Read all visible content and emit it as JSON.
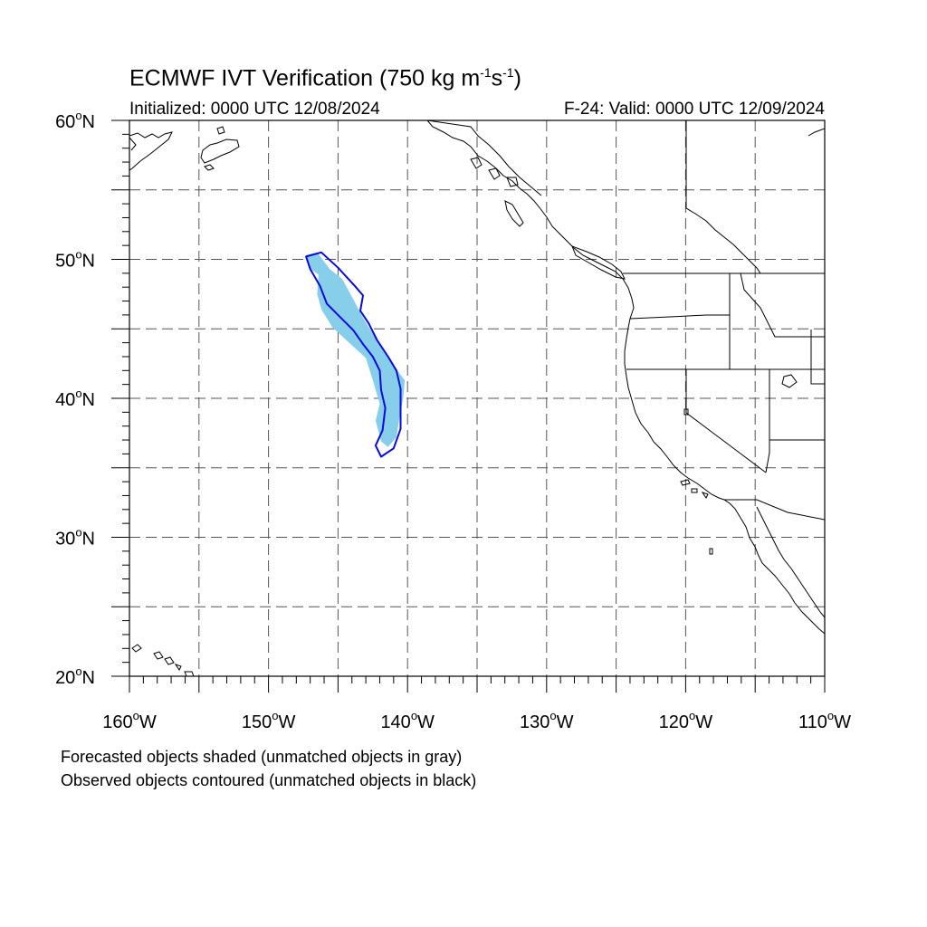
{
  "title": {
    "main": "ECMWF IVT Verification (750 kg m",
    "exp1": "-1",
    "mid": "s",
    "exp2": "-1",
    "close": ")"
  },
  "init_label": "Initialized: 0000 UTC 12/08/2024",
  "valid_label": "F-24: Valid: 0000 UTC 12/09/2024",
  "map_extent": {
    "lon": [
      -160,
      -110
    ],
    "lat": [
      20,
      60
    ]
  },
  "lat_labels": [
    {
      "value": 60,
      "text": "60",
      "suffix": "N"
    },
    {
      "value": 50,
      "text": "50",
      "suffix": "N"
    },
    {
      "value": 40,
      "text": "40",
      "suffix": "N"
    },
    {
      "value": 30,
      "text": "30",
      "suffix": "N"
    },
    {
      "value": 20,
      "text": "20",
      "suffix": "N"
    }
  ],
  "lon_labels": [
    {
      "value": -160,
      "text": "160",
      "suffix": "W"
    },
    {
      "value": -150,
      "text": "150",
      "suffix": "W"
    },
    {
      "value": -140,
      "text": "140",
      "suffix": "W"
    },
    {
      "value": -130,
      "text": "130",
      "suffix": "W"
    },
    {
      "value": -120,
      "text": "120",
      "suffix": "W"
    },
    {
      "value": -110,
      "text": "110",
      "suffix": "W"
    }
  ],
  "degree_symbol": "o",
  "grid": {
    "lon_step": 5,
    "lat_step": 5,
    "style": "dashed"
  },
  "colors": {
    "forecast_fill": "#87ceeb",
    "observed_contour": "#0a0adc",
    "coastline": "#000000",
    "grid": "#555555"
  },
  "objects": {
    "forecast_shaded": {
      "matched": true,
      "outline_lonlat": [
        [
          -147.3,
          50.3
        ],
        [
          -146.5,
          50.5
        ],
        [
          -145.6,
          49.3
        ],
        [
          -144.7,
          48.6
        ],
        [
          -144.0,
          47.3
        ],
        [
          -143.2,
          45.8
        ],
        [
          -142.3,
          44.3
        ],
        [
          -141.4,
          43.1
        ],
        [
          -140.8,
          42.1
        ],
        [
          -140.2,
          41.3
        ],
        [
          -140.3,
          40.1
        ],
        [
          -140.6,
          38.5
        ],
        [
          -140.8,
          37.2
        ],
        [
          -141.4,
          36.5
        ],
        [
          -141.9,
          36.9
        ],
        [
          -142.3,
          38.4
        ],
        [
          -142.0,
          39.6
        ],
        [
          -142.5,
          41.3
        ],
        [
          -143.0,
          42.9
        ],
        [
          -144.2,
          44.0
        ],
        [
          -145.4,
          45.1
        ],
        [
          -146.2,
          46.4
        ],
        [
          -146.5,
          47.5
        ],
        [
          -146.4,
          48.9
        ],
        [
          -147.1,
          49.4
        ]
      ]
    },
    "observed_contour": {
      "matched": true,
      "outline_lonlat": [
        [
          -146.2,
          50.5
        ],
        [
          -147.3,
          50.2
        ],
        [
          -147.0,
          49.3
        ],
        [
          -146.3,
          48.1
        ],
        [
          -145.8,
          46.8
        ],
        [
          -144.9,
          45.9
        ],
        [
          -143.9,
          44.9
        ],
        [
          -143.2,
          43.9
        ],
        [
          -142.5,
          43.0
        ],
        [
          -142.0,
          42.0
        ],
        [
          -141.9,
          40.6
        ],
        [
          -141.6,
          39.3
        ],
        [
          -141.8,
          37.7
        ],
        [
          -142.3,
          36.6
        ],
        [
          -141.9,
          35.8
        ],
        [
          -141.0,
          36.4
        ],
        [
          -140.5,
          37.8
        ],
        [
          -140.5,
          39.3
        ],
        [
          -140.5,
          40.7
        ],
        [
          -140.8,
          42.0
        ],
        [
          -141.4,
          43.0
        ],
        [
          -142.2,
          44.2
        ],
        [
          -142.8,
          45.4
        ],
        [
          -143.4,
          46.3
        ],
        [
          -143.2,
          47.4
        ],
        [
          -143.8,
          48.1
        ],
        [
          -145.0,
          49.4
        ]
      ]
    }
  },
  "caption_forecast": "Forecasted objects shaded (unmatched objects in gray)",
  "caption_observed": "Observed objects contoured (unmatched objects in black)"
}
